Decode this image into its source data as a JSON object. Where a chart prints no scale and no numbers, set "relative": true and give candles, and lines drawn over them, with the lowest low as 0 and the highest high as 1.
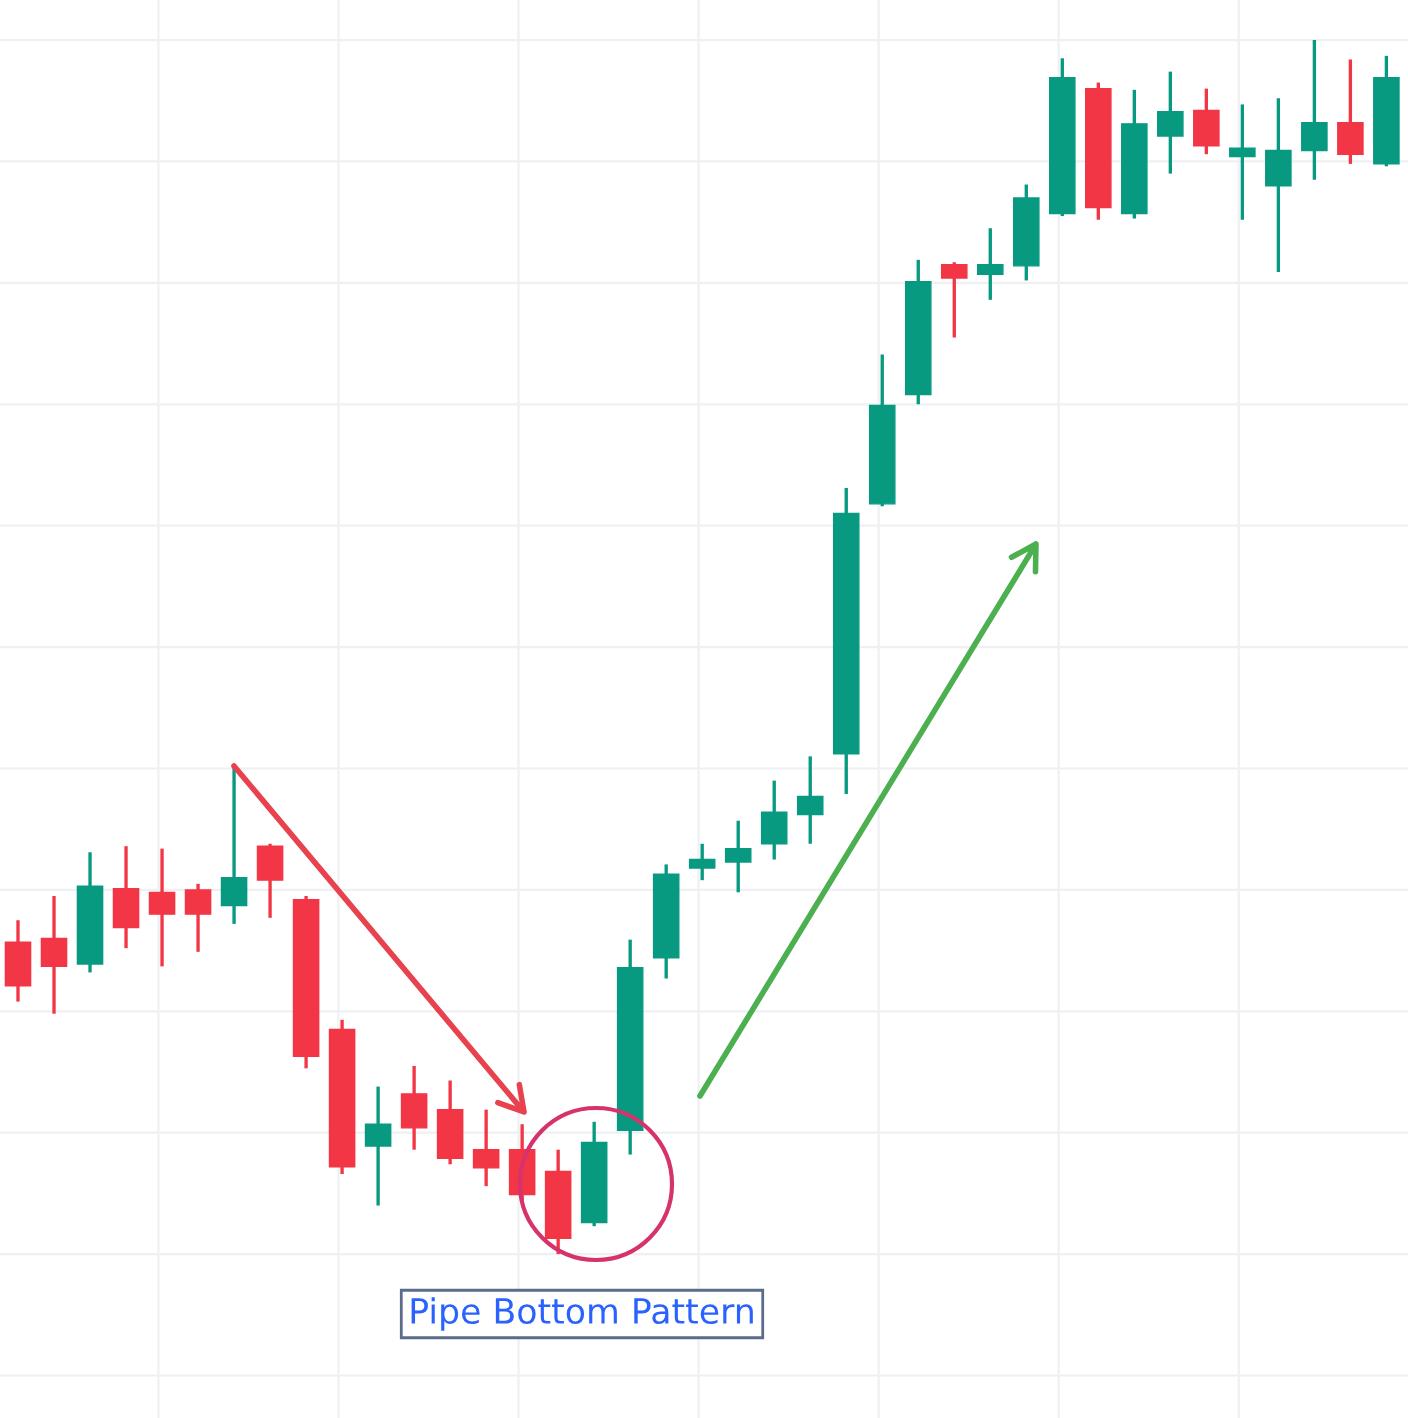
{
  "chart_data": {
    "type": "candlestick",
    "relative": true,
    "grid": true,
    "categories": [
      null,
      null,
      null,
      null,
      null,
      null,
      null,
      null,
      null,
      null,
      null,
      null,
      null,
      null,
      null,
      null,
      null,
      null,
      null,
      null,
      null,
      null,
      null,
      null,
      null,
      null,
      null,
      null,
      null,
      null,
      null,
      null,
      null,
      null,
      null,
      null,
      null,
      null,
      null
    ],
    "colors": [
      "#f23645",
      "#f23645",
      "#089981",
      "#f23645",
      "#f23645",
      "#f23645",
      "#089981",
      "#f23645",
      "#f23645",
      "#f23645",
      "#089981",
      "#f23645",
      "#f23645",
      "#f23645",
      "#f23645",
      "#f23645",
      "#089981",
      "#089981",
      "#089981",
      "#089981",
      "#089981",
      "#089981",
      "#089981",
      "#089981",
      "#089981",
      "#089981",
      "#f23645",
      "#089981",
      "#089981",
      "#089981",
      "#f23645",
      "#089981",
      "#089981",
      "#f23645",
      "#089981",
      "#089981",
      "#089981",
      "#f23645",
      "#089981"
    ],
    "ohlc": [
      [
        0.257,
        0.275,
        0.208,
        0.221
      ],
      [
        0.26,
        0.295,
        0.198,
        0.237
      ],
      [
        0.239,
        0.331,
        0.232,
        0.303
      ],
      [
        0.301,
        0.336,
        0.252,
        0.269
      ],
      [
        0.298,
        0.334,
        0.237,
        0.28
      ],
      [
        0.3,
        0.305,
        0.249,
        0.28
      ],
      [
        0.287,
        0.402,
        0.272,
        0.31
      ],
      [
        0.336,
        0.338,
        0.277,
        0.308
      ],
      [
        0.292,
        0.295,
        0.153,
        0.163
      ],
      [
        0.185,
        0.193,
        0.066,
        0.072
      ],
      [
        0.089,
        0.138,
        0.04,
        0.107
      ],
      [
        0.132,
        0.155,
        0.086,
        0.104
      ],
      [
        0.119,
        0.143,
        0.074,
        0.079
      ],
      [
        0.086,
        0.119,
        0.056,
        0.071
      ],
      [
        0.086,
        0.107,
        0.044,
        0.049
      ],
      [
        0.068,
        0.086,
        0,
        0.013
      ],
      [
        0.026,
        0.109,
        0.023,
        0.092
      ],
      [
        0.102,
        0.259,
        0.082,
        0.236
      ],
      [
        0.244,
        0.321,
        0.227,
        0.313
      ],
      [
        0.318,
        0.338,
        0.308,
        0.325
      ],
      [
        0.323,
        0.357,
        0.298,
        0.334
      ],
      [
        0.338,
        0.39,
        0.325,
        0.364
      ],
      [
        0.362,
        0.41,
        0.338,
        0.377
      ],
      [
        0.412,
        0.631,
        0.379,
        0.61
      ],
      [
        0.618,
        0.741,
        0.616,
        0.699
      ],
      [
        0.708,
        0.819,
        0.7,
        0.801
      ],
      [
        0.815,
        0.817,
        0.755,
        0.804
      ],
      [
        0.807,
        0.845,
        0.786,
        0.815
      ],
      [
        0.814,
        0.881,
        0.802,
        0.87
      ],
      [
        0.857,
        0.985,
        0.855,
        0.969
      ],
      [
        0.96,
        0.965,
        0.852,
        0.862
      ],
      [
        0.857,
        0.959,
        0.853,
        0.931
      ],
      [
        0.921,
        0.974,
        0.89,
        0.941
      ],
      [
        0.942,
        0.96,
        0.906,
        0.913
      ],
      [
        0.904,
        0.947,
        0.852,
        0.911
      ],
      [
        0.88,
        0.952,
        0.809,
        0.909
      ],
      [
        0.909,
        1,
        0.885,
        0.932
      ],
      [
        0.932,
        0.984,
        0.898,
        0.906
      ],
      [
        0.898,
        0.987,
        0.896,
        0.969
      ]
    ],
    "annotations": [
      "Pipe Bottom Pattern"
    ]
  }
}
